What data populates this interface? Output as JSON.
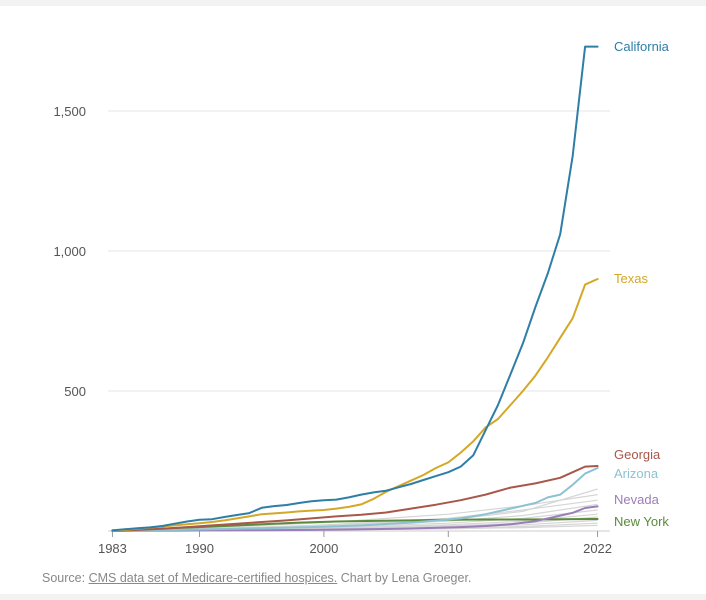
{
  "chart_data": {
    "type": "line",
    "title": "",
    "xlabel": "",
    "ylabel": "",
    "xlim": [
      1982,
      2023
    ],
    "ylim": [
      0,
      1800
    ],
    "x_ticks": [
      {
        "value": 1983,
        "label": "1983"
      },
      {
        "value": 1990,
        "label": "1990"
      },
      {
        "value": 2000,
        "label": "2000"
      },
      {
        "value": 2010,
        "label": "2010"
      },
      {
        "value": 2022,
        "label": "2022"
      }
    ],
    "y_ticks": [
      {
        "value": 500,
        "label": "500"
      },
      {
        "value": 1000,
        "label": "1,000"
      },
      {
        "value": 1500,
        "label": "1,500"
      }
    ],
    "grid": true,
    "highlighted_series": [
      {
        "name": "California",
        "color": "#2e7ea6",
        "points": [
          [
            1983,
            2
          ],
          [
            1984,
            6
          ],
          [
            1985,
            10
          ],
          [
            1986,
            13
          ],
          [
            1987,
            18
          ],
          [
            1988,
            26
          ],
          [
            1989,
            34
          ],
          [
            1990,
            40
          ],
          [
            1991,
            42
          ],
          [
            1992,
            50
          ],
          [
            1993,
            57
          ],
          [
            1994,
            64
          ],
          [
            1995,
            83
          ],
          [
            1996,
            89
          ],
          [
            1997,
            93
          ],
          [
            1998,
            100
          ],
          [
            1999,
            106
          ],
          [
            2000,
            110
          ],
          [
            2001,
            112
          ],
          [
            2002,
            120
          ],
          [
            2003,
            130
          ],
          [
            2004,
            138
          ],
          [
            2005,
            144
          ],
          [
            2006,
            156
          ],
          [
            2007,
            168
          ],
          [
            2008,
            182
          ],
          [
            2009,
            196
          ],
          [
            2010,
            210
          ],
          [
            2011,
            230
          ],
          [
            2012,
            270
          ],
          [
            2013,
            360
          ],
          [
            2014,
            450
          ],
          [
            2015,
            560
          ],
          [
            2016,
            670
          ],
          [
            2017,
            800
          ],
          [
            2018,
            920
          ],
          [
            2019,
            1060
          ],
          [
            2020,
            1340
          ],
          [
            2021,
            1730
          ],
          [
            2022,
            1730
          ]
        ]
      },
      {
        "name": "Texas",
        "color": "#d4a826",
        "points": [
          [
            1983,
            1
          ],
          [
            1984,
            4
          ],
          [
            1985,
            8
          ],
          [
            1986,
            12
          ],
          [
            1987,
            16
          ],
          [
            1988,
            20
          ],
          [
            1989,
            24
          ],
          [
            1990,
            28
          ],
          [
            1991,
            32
          ],
          [
            1992,
            38
          ],
          [
            1993,
            45
          ],
          [
            1994,
            52
          ],
          [
            1995,
            60
          ],
          [
            1996,
            63
          ],
          [
            1997,
            66
          ],
          [
            1998,
            70
          ],
          [
            1999,
            73
          ],
          [
            2000,
            75
          ],
          [
            2001,
            80
          ],
          [
            2002,
            86
          ],
          [
            2003,
            95
          ],
          [
            2004,
            115
          ],
          [
            2005,
            140
          ],
          [
            2006,
            160
          ],
          [
            2007,
            180
          ],
          [
            2008,
            200
          ],
          [
            2009,
            225
          ],
          [
            2010,
            245
          ],
          [
            2011,
            280
          ],
          [
            2012,
            320
          ],
          [
            2013,
            370
          ],
          [
            2014,
            400
          ],
          [
            2015,
            450
          ],
          [
            2016,
            500
          ],
          [
            2017,
            555
          ],
          [
            2018,
            620
          ],
          [
            2019,
            690
          ],
          [
            2020,
            760
          ],
          [
            2021,
            880
          ],
          [
            2022,
            900
          ]
        ]
      },
      {
        "name": "Georgia",
        "color": "#a8574a",
        "points": [
          [
            1983,
            0
          ],
          [
            1985,
            4
          ],
          [
            1987,
            8
          ],
          [
            1989,
            14
          ],
          [
            1991,
            20
          ],
          [
            1993,
            26
          ],
          [
            1995,
            32
          ],
          [
            1997,
            38
          ],
          [
            1999,
            45
          ],
          [
            2001,
            52
          ],
          [
            2003,
            58
          ],
          [
            2005,
            66
          ],
          [
            2007,
            80
          ],
          [
            2009,
            94
          ],
          [
            2011,
            110
          ],
          [
            2013,
            130
          ],
          [
            2015,
            155
          ],
          [
            2017,
            170
          ],
          [
            2019,
            190
          ],
          [
            2020,
            210
          ],
          [
            2021,
            230
          ],
          [
            2022,
            232
          ]
        ]
      },
      {
        "name": "Arizona",
        "color": "#8cc2d1",
        "points": [
          [
            1983,
            0
          ],
          [
            1987,
            3
          ],
          [
            1991,
            6
          ],
          [
            1995,
            10
          ],
          [
            1999,
            14
          ],
          [
            2003,
            20
          ],
          [
            2007,
            30
          ],
          [
            2011,
            45
          ],
          [
            2013,
            60
          ],
          [
            2015,
            80
          ],
          [
            2017,
            100
          ],
          [
            2018,
            120
          ],
          [
            2019,
            130
          ],
          [
            2020,
            165
          ],
          [
            2021,
            205
          ],
          [
            2022,
            225
          ]
        ]
      },
      {
        "name": "Nevada",
        "color": "#9b7db8",
        "points": [
          [
            1983,
            0
          ],
          [
            1987,
            1
          ],
          [
            1991,
            2
          ],
          [
            1995,
            3
          ],
          [
            1999,
            4
          ],
          [
            2003,
            6
          ],
          [
            2007,
            9
          ],
          [
            2011,
            14
          ],
          [
            2013,
            18
          ],
          [
            2015,
            24
          ],
          [
            2017,
            35
          ],
          [
            2019,
            55
          ],
          [
            2020,
            65
          ],
          [
            2021,
            82
          ],
          [
            2022,
            88
          ]
        ]
      },
      {
        "name": "New York",
        "color": "#5a8a3c",
        "points": [
          [
            1983,
            2
          ],
          [
            1986,
            6
          ],
          [
            1989,
            12
          ],
          [
            1992,
            18
          ],
          [
            1995,
            24
          ],
          [
            1998,
            30
          ],
          [
            2001,
            34
          ],
          [
            2004,
            36
          ],
          [
            2007,
            38
          ],
          [
            2010,
            40
          ],
          [
            2013,
            41
          ],
          [
            2016,
            41
          ],
          [
            2019,
            42
          ],
          [
            2022,
            43
          ]
        ]
      }
    ],
    "background_series": [
      {
        "points": [
          [
            1983,
            0
          ],
          [
            1990,
            8
          ],
          [
            2000,
            20
          ],
          [
            2010,
            40
          ],
          [
            2016,
            70
          ],
          [
            2022,
            150
          ]
        ]
      },
      {
        "points": [
          [
            1983,
            0
          ],
          [
            1990,
            10
          ],
          [
            2000,
            30
          ],
          [
            2010,
            60
          ],
          [
            2016,
            90
          ],
          [
            2022,
            130
          ]
        ]
      },
      {
        "points": [
          [
            1983,
            0
          ],
          [
            1990,
            6
          ],
          [
            2000,
            22
          ],
          [
            2010,
            45
          ],
          [
            2016,
            75
          ],
          [
            2022,
            110
          ]
        ]
      },
      {
        "points": [
          [
            1983,
            0
          ],
          [
            1990,
            5
          ],
          [
            2000,
            15
          ],
          [
            2010,
            35
          ],
          [
            2016,
            55
          ],
          [
            2022,
            95
          ]
        ]
      },
      {
        "points": [
          [
            1983,
            0
          ],
          [
            1990,
            4
          ],
          [
            2000,
            12
          ],
          [
            2010,
            28
          ],
          [
            2016,
            45
          ],
          [
            2022,
            75
          ]
        ]
      },
      {
        "points": [
          [
            1983,
            0
          ],
          [
            1990,
            3
          ],
          [
            2000,
            10
          ],
          [
            2010,
            22
          ],
          [
            2016,
            35
          ],
          [
            2022,
            60
          ]
        ]
      },
      {
        "points": [
          [
            1983,
            0
          ],
          [
            1990,
            3
          ],
          [
            2000,
            8
          ],
          [
            2010,
            18
          ],
          [
            2016,
            28
          ],
          [
            2022,
            50
          ]
        ]
      },
      {
        "points": [
          [
            1983,
            0
          ],
          [
            1990,
            2
          ],
          [
            2000,
            6
          ],
          [
            2010,
            14
          ],
          [
            2016,
            22
          ],
          [
            2022,
            38
          ]
        ]
      },
      {
        "points": [
          [
            1983,
            0
          ],
          [
            1990,
            2
          ],
          [
            2000,
            5
          ],
          [
            2010,
            10
          ],
          [
            2016,
            16
          ],
          [
            2022,
            28
          ]
        ]
      },
      {
        "points": [
          [
            1983,
            0
          ],
          [
            1990,
            1
          ],
          [
            2000,
            4
          ],
          [
            2010,
            8
          ],
          [
            2016,
            12
          ],
          [
            2022,
            20
          ]
        ]
      }
    ]
  },
  "source": {
    "prefix": "Source: ",
    "link_text": "CMS data set of Medicare-certified hospices.",
    "suffix": " Chart by Lena Groeger."
  }
}
